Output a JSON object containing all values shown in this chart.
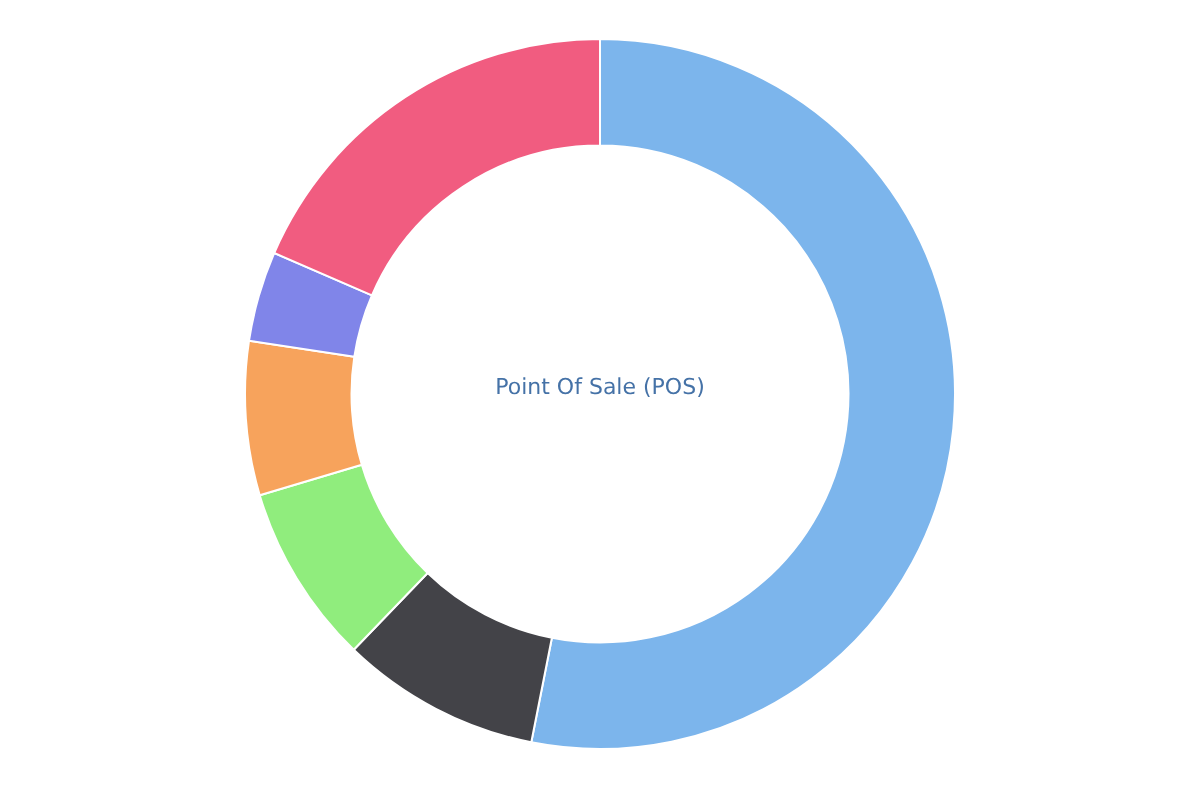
{
  "chart_data": {
    "type": "donut",
    "title": "Point Of Sale (POS)",
    "categories": [
      null,
      null,
      null,
      null,
      null,
      null
    ],
    "values": [
      53.1,
      9.1,
      8.2,
      7.0,
      4.1,
      18.5
    ],
    "colors": [
      "#7cb5ec",
      "#434348",
      "#90ed7d",
      "#f7a35c",
      "#8085e9",
      "#f15c80"
    ]
  }
}
